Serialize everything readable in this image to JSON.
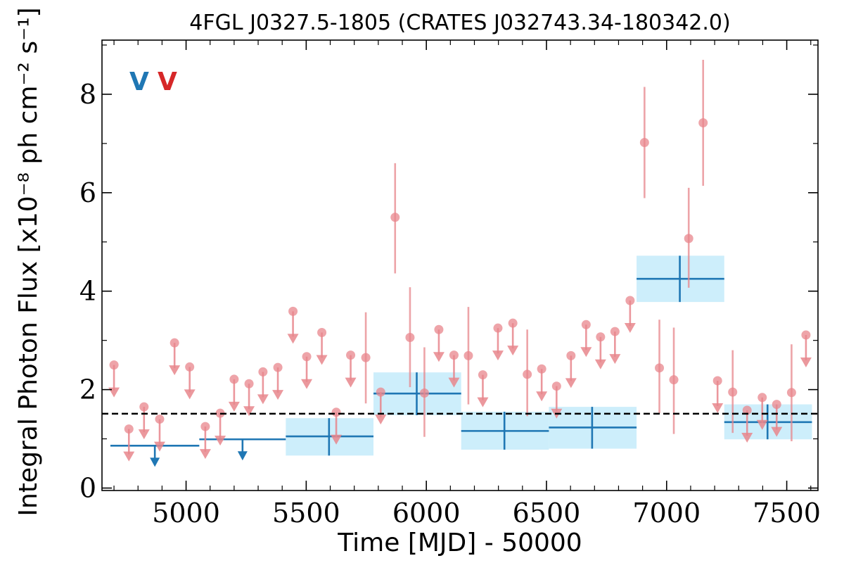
{
  "chart_data": {
    "type": "scatter",
    "title": "4FGL J0327.5-1805 (CRATES J032743.34-180342.0)",
    "xlabel": "Time [MJD] - 50000",
    "ylabel": "Integral Photon Flux [x10⁻⁸ ph cm⁻² s⁻¹]",
    "xlim": [
      4650,
      7630
    ],
    "ylim": [
      -0.05,
      9.1
    ],
    "xticks": [
      5000,
      5500,
      6000,
      6500,
      7000,
      7500
    ],
    "yticks": [
      0,
      2,
      4,
      6,
      8
    ],
    "grid": false,
    "legend": {
      "placement": "top-left",
      "entries": [
        {
          "label": "V",
          "color": "#1f77b4"
        },
        {
          "label": "V",
          "color": "#d62728"
        }
      ]
    },
    "baseline": {
      "y": 1.51,
      "style": "dashed",
      "color": "#000000"
    },
    "colors": {
      "long_bins": "#1f77b4",
      "long_bins_band": "#cdeefb",
      "short_bins": "#e8868c"
    },
    "series": [
      {
        "name": "",
        "color": "#1f77b4",
        "points": [
          {
            "x0": 4685,
            "x1": 5055,
            "y": 0.86,
            "ul": true,
            "arrow_x": 4870
          },
          {
            "x0": 5055,
            "x1": 5415,
            "y": 0.99,
            "ul": true,
            "arrow_x": 5235
          },
          {
            "x0": 5415,
            "x1": 5780,
            "y": 1.05,
            "ylo": 0.66,
            "yhi": 1.42,
            "xc": 5595,
            "band": true
          },
          {
            "x0": 5780,
            "x1": 6145,
            "y": 1.92,
            "ylo": 1.48,
            "yhi": 2.35,
            "xc": 5960,
            "band": true
          },
          {
            "x0": 6145,
            "x1": 6510,
            "y": 1.16,
            "ylo": 0.78,
            "yhi": 1.55,
            "xc": 6325,
            "band": true
          },
          {
            "x0": 6510,
            "x1": 6875,
            "y": 1.23,
            "ylo": 0.8,
            "yhi": 1.65,
            "xc": 6690,
            "band": true
          },
          {
            "x0": 6875,
            "x1": 7240,
            "y": 4.25,
            "ylo": 3.78,
            "yhi": 4.72,
            "xc": 7055,
            "band": true
          },
          {
            "x0": 7240,
            "x1": 7605,
            "y": 1.34,
            "ylo": 0.99,
            "yhi": 1.7,
            "xc": 7420,
            "band": true
          }
        ]
      },
      {
        "name": "",
        "color": "#e8868c",
        "points": [
          {
            "x": 4700,
            "y": 2.5,
            "ul": true
          },
          {
            "x": 4762,
            "y": 1.2,
            "ul": true
          },
          {
            "x": 4825,
            "y": 1.65,
            "ul": true
          },
          {
            "x": 4890,
            "y": 1.4,
            "ul": true
          },
          {
            "x": 4952,
            "y": 2.95,
            "ul": true
          },
          {
            "x": 5015,
            "y": 2.46,
            "ul": true
          },
          {
            "x": 5080,
            "y": 1.25,
            "ul": true
          },
          {
            "x": 5142,
            "y": 1.52,
            "ul": true
          },
          {
            "x": 5200,
            "y": 2.21,
            "ul": true
          },
          {
            "x": 5262,
            "y": 2.12,
            "ul": true
          },
          {
            "x": 5320,
            "y": 2.36,
            "ul": true
          },
          {
            "x": 5382,
            "y": 2.45,
            "ul": true
          },
          {
            "x": 5445,
            "y": 3.59,
            "ul": true
          },
          {
            "x": 5502,
            "y": 2.67,
            "ul": true
          },
          {
            "x": 5565,
            "y": 3.16,
            "ul": true
          },
          {
            "x": 5625,
            "y": 1.54,
            "ul": true
          },
          {
            "x": 5685,
            "y": 2.7,
            "ul": true
          },
          {
            "x": 5748,
            "y": 2.65,
            "ylo": 1.72,
            "yhi": 3.57
          },
          {
            "x": 5810,
            "y": 1.95,
            "ul": true
          },
          {
            "x": 5870,
            "y": 5.5,
            "ylo": 4.36,
            "yhi": 6.6
          },
          {
            "x": 5932,
            "y": 3.06,
            "ylo": 2.05,
            "yhi": 4.08
          },
          {
            "x": 5992,
            "y": 1.93,
            "ylo": 1.04,
            "yhi": 2.86
          },
          {
            "x": 6052,
            "y": 3.22,
            "ul": true
          },
          {
            "x": 6115,
            "y": 2.7,
            "ul": true
          },
          {
            "x": 6175,
            "y": 2.69,
            "ylo": 1.7,
            "yhi": 3.68
          },
          {
            "x": 6235,
            "y": 2.3,
            "ul": true
          },
          {
            "x": 6298,
            "y": 3.25,
            "ul": true
          },
          {
            "x": 6360,
            "y": 3.35,
            "ul": true
          },
          {
            "x": 6420,
            "y": 2.31,
            "ylo": 1.46,
            "yhi": 3.22
          },
          {
            "x": 6480,
            "y": 2.42,
            "ul": true
          },
          {
            "x": 6542,
            "y": 2.07,
            "ul": true
          },
          {
            "x": 6602,
            "y": 2.69,
            "ul": true
          },
          {
            "x": 6665,
            "y": 3.32,
            "ul": true
          },
          {
            "x": 6725,
            "y": 3.07,
            "ul": true
          },
          {
            "x": 6785,
            "y": 3.18,
            "ul": true
          },
          {
            "x": 6848,
            "y": 3.81,
            "ul": true
          },
          {
            "x": 6908,
            "y": 7.02,
            "ylo": 5.89,
            "yhi": 8.15
          },
          {
            "x": 6970,
            "y": 2.44,
            "ylo": 1.52,
            "yhi": 3.42
          },
          {
            "x": 7030,
            "y": 2.2,
            "ylo": 1.1,
            "yhi": 3.26
          },
          {
            "x": 7092,
            "y": 5.07,
            "ylo": 4.07,
            "yhi": 6.1
          },
          {
            "x": 7152,
            "y": 7.42,
            "ylo": 6.14,
            "yhi": 8.7
          },
          {
            "x": 7212,
            "y": 2.18,
            "ul": true
          },
          {
            "x": 7275,
            "y": 1.95,
            "ylo": 1.12,
            "yhi": 2.8
          },
          {
            "x": 7335,
            "y": 1.58,
            "ul": true
          },
          {
            "x": 7398,
            "y": 1.84,
            "ul": true
          },
          {
            "x": 7458,
            "y": 1.7,
            "ul": true
          },
          {
            "x": 7520,
            "y": 1.94,
            "ylo": 0.95,
            "yhi": 2.92
          },
          {
            "x": 7580,
            "y": 3.11,
            "ul": true
          }
        ]
      }
    ]
  }
}
